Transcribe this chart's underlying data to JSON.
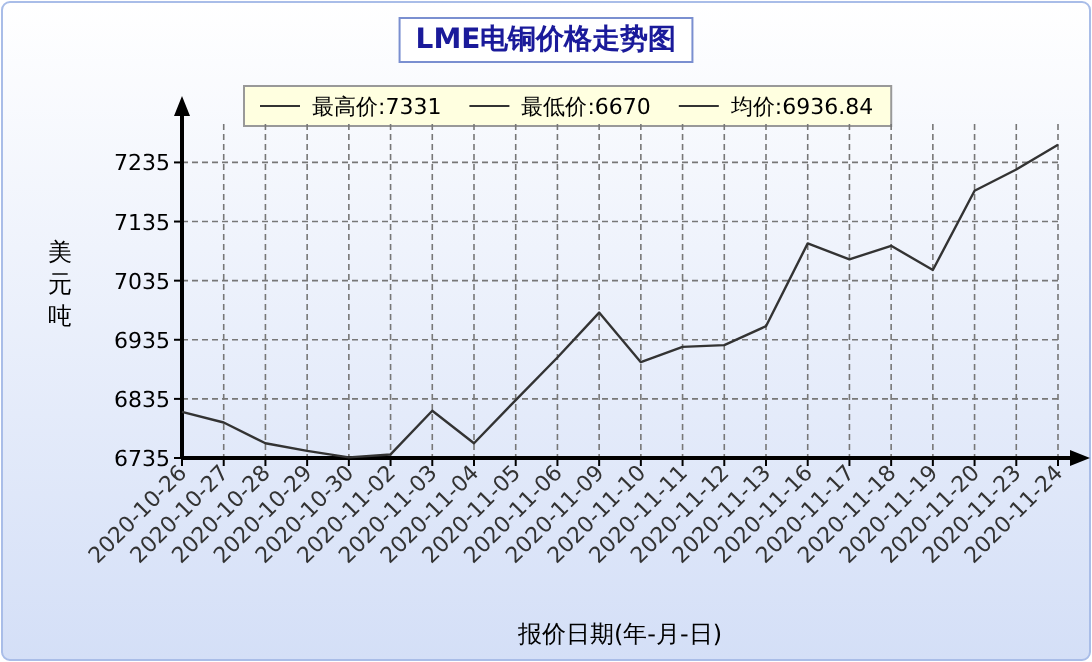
{
  "chart_data": {
    "type": "line",
    "title": "LME电铜价格走势图",
    "xlabel": "报价日期(年-月-日)",
    "ylabel": "美元吨",
    "annotations": [
      "最高价:7331",
      "最低价:6670",
      "均价:6936.84"
    ],
    "categories": [
      "2020-10-26",
      "2020-10-27",
      "2020-10-28",
      "2020-10-29",
      "2020-10-30",
      "2020-11-02",
      "2020-11-03",
      "2020-11-04",
      "2020-11-05",
      "2020-11-06",
      "2020-11-09",
      "2020-11-10",
      "2020-11-11",
      "2020-11-12",
      "2020-11-13",
      "2020-11-16",
      "2020-11-17",
      "2020-11-18",
      "2020-11-19",
      "2020-11-20",
      "2020-11-23",
      "2020-11-24"
    ],
    "series": [
      {
        "color": "#333333",
        "values": [
          6813,
          6795,
          6760,
          6747,
          6736,
          6741,
          6815,
          6760,
          6833,
          6905,
          6981,
          6897,
          6923,
          6926,
          6958,
          7098,
          7071,
          7094,
          7053,
          7187,
          7223,
          7265
        ]
      }
    ],
    "ylim": [
      6735,
      7300
    ],
    "yticks": [
      6735,
      6835,
      6935,
      7035,
      7135,
      7235
    ],
    "grid": true,
    "marker": "none",
    "line_style": "solid"
  }
}
